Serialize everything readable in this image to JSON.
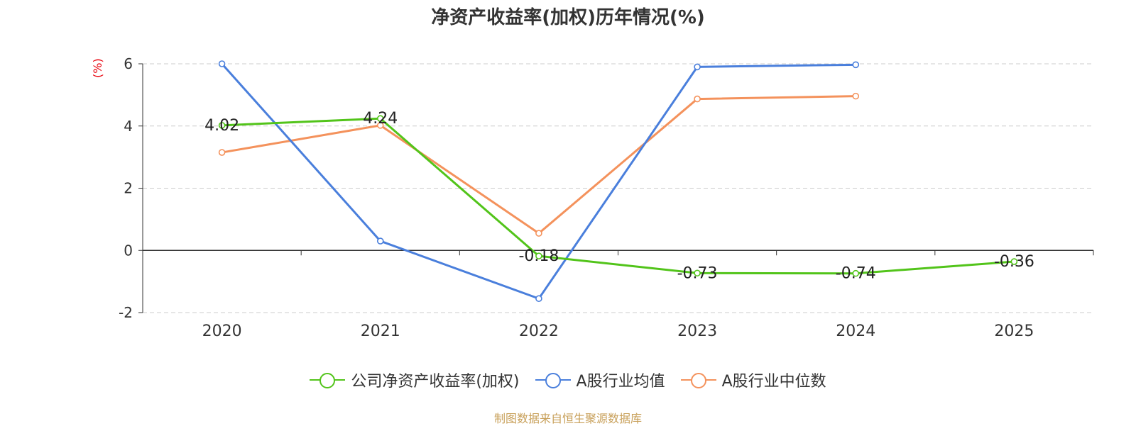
{
  "title": "净资产收益率(加权)历年情况(%)",
  "y_unit": "(%)",
  "source": "制图数据来自恒生聚源数据库",
  "chart_data": {
    "type": "line",
    "title": "净资产收益率(加权)历年情况(%)",
    "ylabel": "(%)",
    "categories": [
      "2020",
      "2021",
      "2022",
      "2023",
      "2024",
      "2025"
    ],
    "ylim": [
      -2,
      6
    ],
    "yticks": [
      6,
      4,
      2,
      0,
      -2
    ],
    "grid": true,
    "legend": "bottom",
    "series": [
      {
        "name": "公司净资产收益率(加权)",
        "color": "#52c41a",
        "values": [
          4.02,
          4.24,
          -0.18,
          -0.73,
          -0.74,
          -0.36
        ],
        "labels": [
          "4.02",
          "4.24",
          "-0.18",
          "-0.73",
          "-0.74",
          "-0.36"
        ]
      },
      {
        "name": "A股行业均值",
        "color": "#4a7fdc",
        "values": [
          6.0,
          0.3,
          -1.55,
          5.9,
          5.97,
          null
        ]
      },
      {
        "name": "A股行业中位数",
        "color": "#f4925c",
        "values": [
          3.15,
          4.02,
          0.55,
          4.87,
          4.96,
          null
        ]
      }
    ]
  }
}
